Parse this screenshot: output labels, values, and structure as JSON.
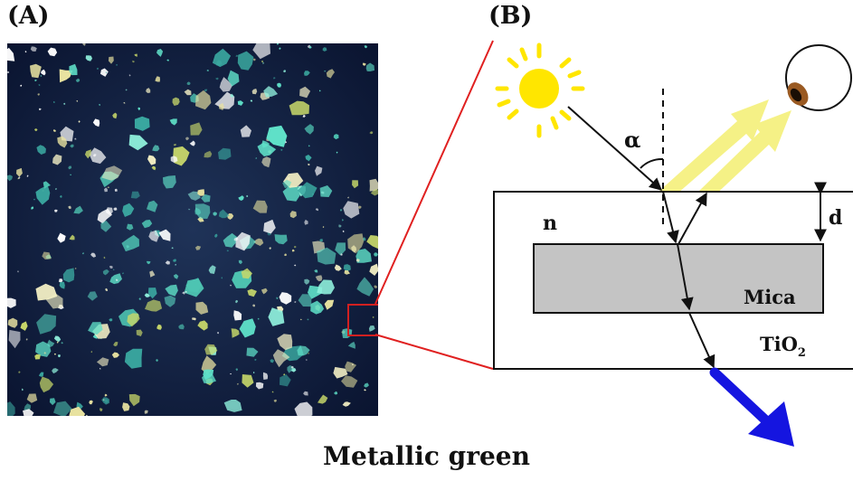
{
  "panels": {
    "a_label": "(A)",
    "b_label": "(B)"
  },
  "diagram": {
    "angle_label": "α",
    "thickness_label": "d",
    "index_label": "n",
    "core_label": "Mica",
    "coating_label_main": "TiO",
    "coating_label_sub": "2"
  },
  "caption": "Metallic green",
  "colors": {
    "photo_background": "#0d1a3a",
    "flake_cyan": "#5fe0c8",
    "flake_gold": "#e8e2a0",
    "zoom_box": "#d22020",
    "sun": "#ffe600",
    "reflected_light": "#f5f07a",
    "transmitted_light": "#1515e0",
    "mica": "#c4c4c4"
  },
  "icons": [
    "sun-icon",
    "eye-icon"
  ]
}
